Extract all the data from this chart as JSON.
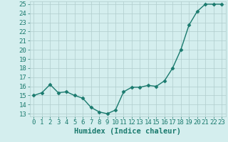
{
  "xlabel": "Humidex (Indice chaleur)",
  "x": [
    0,
    1,
    2,
    3,
    4,
    5,
    6,
    7,
    8,
    9,
    10,
    11,
    12,
    13,
    14,
    15,
    16,
    17,
    18,
    19,
    20,
    21,
    22,
    23
  ],
  "y": [
    15,
    15.3,
    16.2,
    15.3,
    15.4,
    15.0,
    14.7,
    13.7,
    13.2,
    13.0,
    13.4,
    15.4,
    15.9,
    15.9,
    16.1,
    16.0,
    16.6,
    18.0,
    20.0,
    22.7,
    24.2,
    25.0,
    25.0,
    25.0
  ],
  "line_color": "#1a7a6e",
  "marker": "D",
  "marker_size": 2.5,
  "bg_color": "#d4eeee",
  "grid_color": "#b0cccc",
  "ylim_min": 12.7,
  "ylim_max": 25.3,
  "xlim_min": -0.5,
  "xlim_max": 23.5,
  "yticks": [
    13,
    14,
    15,
    16,
    17,
    18,
    19,
    20,
    21,
    22,
    23,
    24,
    25
  ],
  "xticks": [
    0,
    1,
    2,
    3,
    4,
    5,
    6,
    7,
    8,
    9,
    10,
    11,
    12,
    13,
    14,
    15,
    16,
    17,
    18,
    19,
    20,
    21,
    22,
    23
  ],
  "tick_fontsize": 6.5,
  "xlabel_fontsize": 7.5,
  "line_width": 1.0
}
